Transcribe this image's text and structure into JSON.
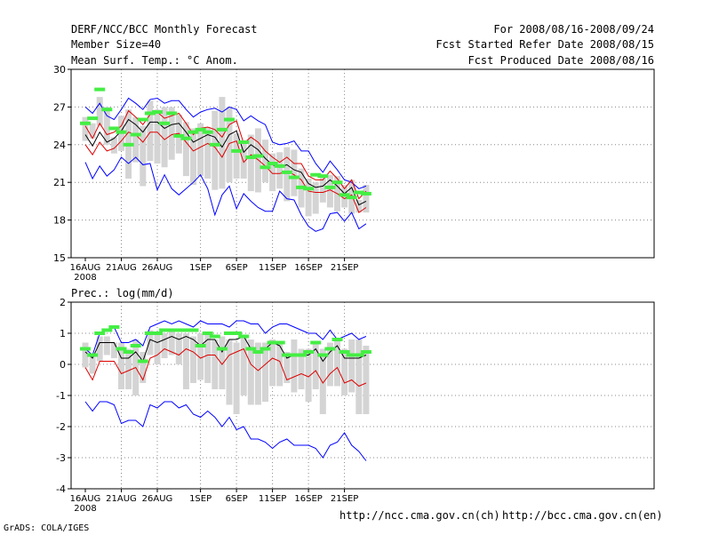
{
  "header": {
    "title": "DERF/NCC/BCC Monthly Forecast",
    "member_size": "Member Size=40",
    "variable": "Mean Surf. Temp.: °C Anom.",
    "period": "For 2008/08/16-2008/09/24",
    "start_date": "Fcst Started Refer Date 2008/08/15",
    "produced_date": "Fcst Produced Date 2008/08/16"
  },
  "footer": {
    "credit": "GrADS: COLA/IGES",
    "url_ch": "http://ncc.cma.gov.cn(ch)",
    "url_en": "http://bcc.cma.gov.cn(en)"
  },
  "colors": {
    "upper": "#0000ff",
    "lower": "#0000ff",
    "mean": "#000000",
    "spread_upper": "#dd0000",
    "spread_lower": "#dd0000",
    "box": "#d4d4d4",
    "obs": "#44ee44"
  },
  "chart_data": [
    {
      "type": "line",
      "name": "temperature",
      "title": "Mean Surf. Temp.: °C Anom.",
      "ylim": [
        15,
        30
      ],
      "yticks": [
        15,
        18,
        21,
        24,
        27,
        30
      ],
      "x_tick_labels": [
        {
          "day": 1,
          "label": "16AUG",
          "sub": "2008"
        },
        {
          "day": 6,
          "label": "21AUG"
        },
        {
          "day": 11,
          "label": "26AUG"
        },
        {
          "day": 17,
          "label": "1SEP"
        },
        {
          "day": 22,
          "label": "6SEP"
        },
        {
          "day": 27,
          "label": "11SEP"
        },
        {
          "day": 32,
          "label": "16SEP"
        },
        {
          "day": 37,
          "label": "21SEP"
        }
      ],
      "days": 40,
      "series": [
        {
          "name": "max",
          "role": "upper",
          "values": [
            27.0,
            26.5,
            27.3,
            26.3,
            26.0,
            26.8,
            27.7,
            27.3,
            26.8,
            27.6,
            27.7,
            27.3,
            27.5,
            27.5,
            26.8,
            26.2,
            26.6,
            26.8,
            26.9,
            26.6,
            27.0,
            26.8,
            25.9,
            26.3,
            25.9,
            25.6,
            24.2,
            24.0,
            24.1,
            24.3,
            23.5,
            23.5,
            22.5,
            21.8,
            22.7,
            22.0,
            21.2,
            21.0,
            20.5,
            20.7
          ]
        },
        {
          "name": "spread_upper",
          "role": "spread_upper",
          "values": [
            25.5,
            24.5,
            25.7,
            24.8,
            25.0,
            25.5,
            26.7,
            26.2,
            25.6,
            26.4,
            26.6,
            26.1,
            26.3,
            26.5,
            25.7,
            24.8,
            25.3,
            25.4,
            25.2,
            24.6,
            25.6,
            25.9,
            24.1,
            24.6,
            24.2,
            23.5,
            23.0,
            22.6,
            23.0,
            22.5,
            22.5,
            21.5,
            21.2,
            21.2,
            21.9,
            21.3,
            20.5,
            21.2,
            19.7,
            20.3
          ]
        },
        {
          "name": "mean",
          "role": "mean",
          "values": [
            24.8,
            23.9,
            25.0,
            24.2,
            24.5,
            25.1,
            26.0,
            25.6,
            25.0,
            25.8,
            25.8,
            25.3,
            25.6,
            25.7,
            25.0,
            24.2,
            24.5,
            24.8,
            24.6,
            23.8,
            24.8,
            25.1,
            23.4,
            24.0,
            23.6,
            22.9,
            22.4,
            22.2,
            22.4,
            22.0,
            21.8,
            20.9,
            20.6,
            20.7,
            21.2,
            20.7,
            20.1,
            20.6,
            19.2,
            19.5
          ]
        },
        {
          "name": "spread_lower",
          "role": "spread_lower",
          "values": [
            24.0,
            23.2,
            24.2,
            23.5,
            23.7,
            24.3,
            25.0,
            24.8,
            24.2,
            25.0,
            25.0,
            24.4,
            24.8,
            24.9,
            24.2,
            23.5,
            23.8,
            24.1,
            23.8,
            23.0,
            24.1,
            24.3,
            22.6,
            23.2,
            22.8,
            22.3,
            21.7,
            21.7,
            21.9,
            21.6,
            21.2,
            20.3,
            20.2,
            20.2,
            20.4,
            20.1,
            19.7,
            20.0,
            18.6,
            19.0
          ]
        },
        {
          "name": "min",
          "role": "lower",
          "values": [
            22.6,
            21.3,
            22.3,
            21.5,
            22.0,
            23.0,
            22.5,
            23.0,
            22.4,
            22.5,
            20.4,
            21.6,
            20.5,
            20.0,
            20.5,
            21.0,
            21.6,
            20.5,
            18.4,
            20.0,
            20.7,
            18.9,
            20.1,
            19.5,
            19.0,
            18.7,
            18.7,
            20.3,
            19.7,
            19.6,
            18.4,
            17.5,
            17.1,
            17.3,
            18.5,
            18.6,
            17.9,
            18.6,
            17.3,
            17.7
          ]
        },
        {
          "name": "observed",
          "role": "obs",
          "values": [
            25.7,
            26.1,
            28.4,
            26.8,
            25.3,
            25.0,
            24.0,
            24.8,
            26.0,
            26.5,
            26.6,
            25.7,
            26.5,
            24.7,
            24.5,
            25.0,
            25.2,
            25.0,
            24.0,
            25.2,
            26.0,
            23.5,
            24.2,
            23.0,
            23.1,
            22.2,
            22.5,
            22.3,
            21.8,
            21.4,
            20.6,
            20.5,
            21.6,
            21.5,
            20.6,
            21.0,
            20.0,
            19.8,
            20.2,
            20.1
          ]
        }
      ],
      "boxes": {
        "top": [
          26.2,
          25.7,
          27.8,
          27.0,
          24.6,
          26.3,
          26.8,
          26.2,
          25.5,
          27.5,
          26.8,
          27.0,
          27.0,
          26.4,
          25.8,
          25.3,
          25.7,
          25.4,
          26.7,
          27.8,
          27.0,
          24.9,
          24.2,
          24.8,
          25.3,
          24.4,
          23.3,
          23.4,
          23.8,
          23.6,
          22.1,
          21.3,
          21.0,
          21.5,
          21.6,
          21.5,
          20.8,
          21.2,
          19.6,
          20.8
        ],
        "bottom": [
          24.3,
          24.5,
          25.5,
          24.0,
          23.3,
          23.5,
          21.3,
          22.6,
          20.7,
          22.7,
          22.5,
          22.2,
          22.8,
          23.3,
          21.5,
          20.8,
          21.5,
          21.3,
          20.4,
          20.5,
          21.0,
          21.3,
          21.3,
          20.3,
          20.2,
          21.0,
          20.3,
          20.5,
          19.5,
          19.9,
          19.0,
          18.3,
          18.5,
          19.4,
          19.0,
          18.7,
          19.0,
          18.5,
          18.6,
          18.6
        ]
      }
    },
    {
      "type": "line",
      "name": "precipitation",
      "title": "Prec.: log(mm/d)",
      "ylim": [
        -4,
        2
      ],
      "yticks": [
        -4,
        -3,
        -2,
        -1,
        0,
        1,
        2
      ],
      "x_tick_labels": [
        {
          "day": 1,
          "label": "16AUG",
          "sub": "2008"
        },
        {
          "day": 6,
          "label": "21AUG"
        },
        {
          "day": 11,
          "label": "26AUG"
        },
        {
          "day": 17,
          "label": "1SEP"
        },
        {
          "day": 22,
          "label": "6SEP"
        },
        {
          "day": 27,
          "label": "11SEP"
        },
        {
          "day": 32,
          "label": "16SEP"
        },
        {
          "day": 37,
          "label": "21SEP"
        }
      ],
      "days": 40,
      "series": [
        {
          "name": "max",
          "role": "upper",
          "values": [
            0.5,
            0.3,
            1.0,
            1.1,
            1.2,
            0.7,
            0.7,
            0.8,
            0.6,
            1.2,
            1.3,
            1.4,
            1.3,
            1.4,
            1.3,
            1.2,
            1.4,
            1.3,
            1.3,
            1.3,
            1.2,
            1.4,
            1.4,
            1.3,
            1.3,
            1.0,
            1.2,
            1.3,
            1.3,
            1.2,
            1.1,
            1.0,
            1.0,
            0.8,
            1.1,
            0.8,
            0.9,
            1.0,
            0.8,
            0.9
          ]
        },
        {
          "name": "mean",
          "role": "mean",
          "values": [
            0.4,
            0.2,
            0.7,
            0.7,
            0.7,
            0.2,
            0.2,
            0.4,
            0.1,
            0.8,
            0.7,
            0.8,
            0.9,
            0.8,
            0.9,
            0.8,
            0.6,
            0.8,
            0.8,
            0.4,
            0.8,
            0.8,
            0.9,
            0.5,
            0.4,
            0.5,
            0.7,
            0.6,
            0.2,
            0.3,
            0.3,
            0.3,
            0.5,
            0.1,
            0.4,
            0.6,
            0.2,
            0.2,
            0.2,
            0.3
          ]
        },
        {
          "name": "spread_lower",
          "role": "spread_lower",
          "values": [
            -0.1,
            -0.5,
            0.1,
            0.1,
            0.1,
            -0.3,
            -0.2,
            -0.1,
            -0.5,
            0.2,
            0.3,
            0.5,
            0.4,
            0.3,
            0.5,
            0.4,
            0.2,
            0.3,
            0.3,
            0.0,
            0.3,
            0.4,
            0.5,
            0.0,
            -0.2,
            0.0,
            0.2,
            0.1,
            -0.5,
            -0.4,
            -0.3,
            -0.4,
            -0.2,
            -0.6,
            -0.3,
            -0.1,
            -0.6,
            -0.5,
            -0.7,
            -0.6
          ]
        },
        {
          "name": "min",
          "role": "lower",
          "values": [
            -1.2,
            -1.5,
            -1.2,
            -1.2,
            -1.3,
            -1.9,
            -1.8,
            -1.8,
            -2.0,
            -1.3,
            -1.4,
            -1.2,
            -1.2,
            -1.4,
            -1.3,
            -1.6,
            -1.7,
            -1.5,
            -1.7,
            -2.0,
            -1.7,
            -2.1,
            -2.0,
            -2.4,
            -2.4,
            -2.5,
            -2.7,
            -2.5,
            -2.4,
            -2.6,
            -2.6,
            -2.6,
            -2.7,
            -3.0,
            -2.6,
            -2.5,
            -2.2,
            -2.6,
            -2.8,
            -3.1
          ]
        },
        {
          "name": "observed",
          "role": "obs",
          "values": [
            0.5,
            0.3,
            1.0,
            1.1,
            1.2,
            0.5,
            0.4,
            0.6,
            0.1,
            1.0,
            1.0,
            1.1,
            1.1,
            1.1,
            1.1,
            1.1,
            0.6,
            1.0,
            0.9,
            0.5,
            1.0,
            1.0,
            0.9,
            0.5,
            0.4,
            0.5,
            0.7,
            0.7,
            0.3,
            0.3,
            0.3,
            0.4,
            0.7,
            0.3,
            0.5,
            0.8,
            0.4,
            0.3,
            0.3,
            0.4
          ]
        }
      ],
      "boxes": {
        "top": [
          0.7,
          0.3,
          0.9,
          0.9,
          0.7,
          0.7,
          0.5,
          0.8,
          0.4,
          1.1,
          1.0,
          1.0,
          1.1,
          1.0,
          1.0,
          0.9,
          1.0,
          1.0,
          0.8,
          0.9,
          0.8,
          0.7,
          0.9,
          0.8,
          0.7,
          0.7,
          0.8,
          0.7,
          0.4,
          0.8,
          0.5,
          0.5,
          0.7,
          0.5,
          0.7,
          0.8,
          0.5,
          0.8,
          0.8,
          0.6
        ],
        "bottom": [
          -0.1,
          -0.3,
          0.1,
          0.3,
          0.2,
          -0.8,
          -0.8,
          -1.0,
          -0.6,
          0.3,
          0.0,
          0.2,
          0.3,
          0.0,
          -0.8,
          -0.6,
          -0.5,
          -0.6,
          -0.8,
          -0.8,
          -1.3,
          -1.6,
          -1.0,
          -1.3,
          -1.3,
          -1.2,
          -0.7,
          -0.7,
          -0.6,
          -0.9,
          -0.8,
          -1.2,
          -0.8,
          -1.6,
          -0.7,
          -0.7,
          -1.0,
          -0.9,
          -1.6,
          -1.6
        ]
      }
    }
  ]
}
